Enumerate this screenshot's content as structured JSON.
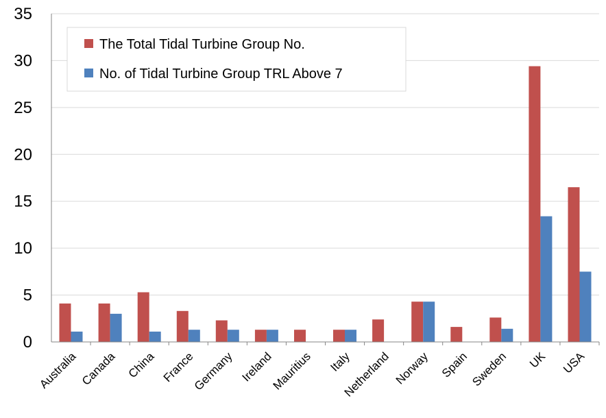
{
  "chart_data": {
    "type": "bar",
    "categories": [
      "Australia",
      "Canada",
      "China",
      "France",
      "Germany",
      "Ireland",
      "Mauritius",
      "Italy",
      "Netherland",
      "Norway",
      "Spain",
      "Sweden",
      "UK",
      "USA"
    ],
    "series": [
      {
        "name": "The Total Tidal Turbine Group No.",
        "color": "#c0504d",
        "values": [
          4.1,
          4.1,
          5.3,
          3.3,
          2.3,
          1.3,
          1.3,
          1.3,
          2.4,
          4.3,
          1.6,
          2.6,
          29.4,
          16.5
        ]
      },
      {
        "name": "No. of Tidal Turbine Group TRL Above 7",
        "color": "#4f81bd",
        "values": [
          1.1,
          3.0,
          1.1,
          1.3,
          1.3,
          1.3,
          0,
          1.3,
          0,
          4.3,
          0,
          1.4,
          13.4,
          7.5
        ]
      }
    ],
    "yticks": [
      "0",
      "5",
      "10",
      "15",
      "20",
      "25",
      "30",
      "35"
    ],
    "ylim": [
      0,
      35
    ],
    "grid": true,
    "legend_position": "top-left"
  }
}
